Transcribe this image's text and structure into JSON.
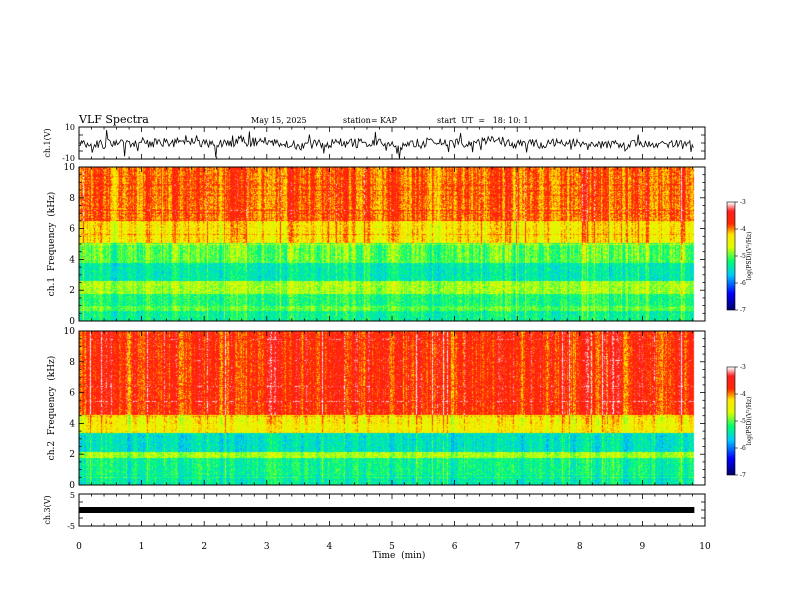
{
  "header": {
    "title": "VLF Spectra",
    "date": "May 15, 2025",
    "station": "station= KAP",
    "start_ut": "start  UT  =   18: 10: 1"
  },
  "chart_data": [
    {
      "type": "line",
      "name": "ch1-waveform",
      "ylabel": "ch.1(V)",
      "ylim": [
        -10,
        10
      ],
      "yticks": [
        10,
        -10
      ],
      "xlim": [
        0,
        10
      ],
      "data_end_min": 9.83,
      "description_values": "noisy waveform, mostly within -5 to 5 V"
    },
    {
      "type": "heatmap",
      "name": "ch1-spectrogram",
      "ylabel": "ch.1  Frequency  (kHz)",
      "ylim": [
        0,
        10
      ],
      "yticks": [
        0,
        2,
        4,
        6,
        8,
        10
      ],
      "xlim": [
        0,
        10
      ],
      "data_end_min": 9.83,
      "bands": [
        {
          "from_khz": 0.0,
          "to_khz": 0.7,
          "level": -5.3
        },
        {
          "from_khz": 0.7,
          "to_khz": 1.0,
          "level": -5.0
        },
        {
          "from_khz": 1.0,
          "to_khz": 1.8,
          "level": -5.2
        },
        {
          "from_khz": 1.8,
          "to_khz": 2.6,
          "level": -4.8
        },
        {
          "from_khz": 2.6,
          "to_khz": 3.8,
          "level": -5.4
        },
        {
          "from_khz": 3.8,
          "to_khz": 5.1,
          "level": -5.0
        },
        {
          "from_khz": 5.1,
          "to_khz": 6.5,
          "level": -4.3
        },
        {
          "from_khz": 6.5,
          "to_khz": 10.0,
          "level": -3.9
        }
      ]
    },
    {
      "type": "heatmap",
      "name": "ch2-spectrogram",
      "ylabel": "ch.2  Frequency  (kHz)",
      "ylim": [
        0,
        10
      ],
      "yticks": [
        0,
        2,
        4,
        6,
        8,
        10
      ],
      "xlim": [
        0,
        10
      ],
      "data_end_min": 9.83,
      "bands": [
        {
          "from_khz": 0.0,
          "to_khz": 0.7,
          "level": -5.4
        },
        {
          "from_khz": 0.7,
          "to_khz": 1.8,
          "level": -5.3
        },
        {
          "from_khz": 1.8,
          "to_khz": 2.2,
          "level": -4.8
        },
        {
          "from_khz": 2.2,
          "to_khz": 3.4,
          "level": -5.5
        },
        {
          "from_khz": 3.4,
          "to_khz": 4.6,
          "level": -4.4
        },
        {
          "from_khz": 4.6,
          "to_khz": 10.0,
          "level": -3.7
        }
      ]
    },
    {
      "type": "line",
      "name": "ch3-waveform",
      "ylabel": "ch.3(V)",
      "ylim": [
        -5,
        5
      ],
      "yticks": [
        5,
        -5
      ],
      "xlim": [
        0,
        10
      ],
      "data_end_min": 9.83,
      "level_v": 0,
      "noise_v": 0.4
    }
  ],
  "colorbars": [
    {
      "label": "log(PSD)(V²/Hz)",
      "min": -7,
      "max": -3,
      "ticks": [
        "-3",
        "-4",
        "-5",
        "-6",
        "-7"
      ]
    },
    {
      "label": "log(PSD)(V²/Hz)",
      "min": -7,
      "max": -3,
      "ticks": [
        "-3",
        "-4",
        "-5",
        "-6",
        "-7"
      ]
    }
  ],
  "x_axis": {
    "label": "Time  (min)",
    "range": [
      0,
      10
    ],
    "ticks": [
      "0",
      "1",
      "2",
      "3",
      "4",
      "5",
      "6",
      "7",
      "8",
      "9",
      "10"
    ]
  },
  "colors": {
    "axis": "#000000",
    "trace": "#000000",
    "cmap": [
      "#000070",
      "#0000ff",
      "#00c8ff",
      "#00ff64",
      "#ffff00",
      "#ff0000",
      "#ffffff"
    ]
  }
}
